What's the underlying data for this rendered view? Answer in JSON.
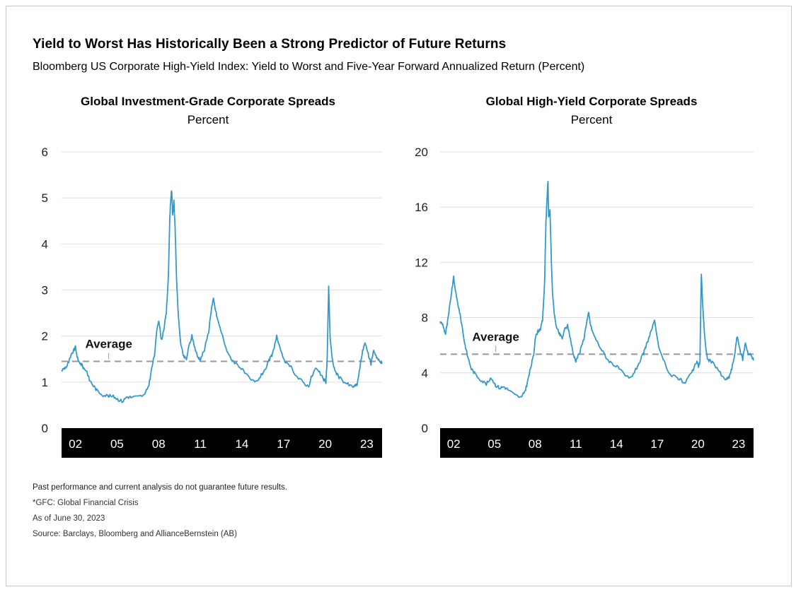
{
  "title": "Yield to Worst Has Historically Been a Strong Predictor of Future Returns",
  "subtitle": "Bloomberg US Corporate High-Yield Index: Yield to Worst and Five-Year Forward Annualized Return (Percent)",
  "colors": {
    "line": "#3399cc",
    "grid": "#dddddd",
    "average": "#999999",
    "axis_band": "#000000",
    "axis_text": "#ffffff"
  },
  "chart_data": [
    {
      "type": "line",
      "title": "Global Investment-Grade Corporate Spreads",
      "subtitle": "Percent",
      "ylim": [
        0,
        6
      ],
      "yticks": [
        0,
        1,
        2,
        3,
        4,
        5,
        6
      ],
      "xlim": [
        2001.0,
        2024.1
      ],
      "xticks": [
        {
          "value": 2002,
          "label": "02"
        },
        {
          "value": 2005,
          "label": "05"
        },
        {
          "value": 2008,
          "label": "08"
        },
        {
          "value": 2011,
          "label": "11"
        },
        {
          "value": 2014,
          "label": "14"
        },
        {
          "value": 2017,
          "label": "17"
        },
        {
          "value": 2020,
          "label": "20"
        },
        {
          "value": 2023,
          "label": "23"
        }
      ],
      "average": {
        "label": "Average",
        "value": 1.45
      },
      "grid": true,
      "series": [
        {
          "x": [
            2001.0,
            2001.2,
            2001.4,
            2001.6,
            2001.8,
            2002.0,
            2002.2,
            2002.4,
            2002.6,
            2002.8,
            2003.0,
            2003.3,
            2003.6,
            2004.0,
            2004.4,
            2004.8,
            2005.1,
            2005.4,
            2005.7,
            2006.0,
            2006.5,
            2007.0,
            2007.3,
            2007.5,
            2007.7,
            2007.9,
            2008.0,
            2008.2,
            2008.4,
            2008.55,
            2008.7,
            2008.8,
            2008.9,
            2008.95,
            2009.0,
            2009.1,
            2009.2,
            2009.3,
            2009.45,
            2009.6,
            2009.8,
            2010.0,
            2010.2,
            2010.4,
            2010.6,
            2010.8,
            2011.0,
            2011.3,
            2011.6,
            2011.8,
            2011.95,
            2012.1,
            2012.3,
            2012.6,
            2013.0,
            2013.4,
            2013.8,
            2014.2,
            2014.6,
            2015.0,
            2015.4,
            2015.8,
            2016.0,
            2016.2,
            2016.5,
            2016.8,
            2017.2,
            2017.6,
            2018.0,
            2018.4,
            2018.8,
            2019.0,
            2019.3,
            2019.6,
            2019.9,
            2020.05,
            2020.15,
            2020.25,
            2020.35,
            2020.5,
            2020.7,
            2021.0,
            2021.4,
            2021.8,
            2022.1,
            2022.3,
            2022.5,
            2022.7,
            2022.9,
            2023.1,
            2023.3,
            2023.5,
            2023.7,
            2023.9,
            2024.1
          ],
          "y": [
            1.25,
            1.3,
            1.35,
            1.5,
            1.65,
            1.75,
            1.45,
            1.4,
            1.3,
            1.25,
            1.05,
            0.92,
            0.8,
            0.72,
            0.7,
            0.68,
            0.62,
            0.58,
            0.68,
            0.67,
            0.68,
            0.72,
            0.95,
            1.3,
            1.6,
            2.2,
            2.35,
            1.9,
            2.2,
            2.5,
            3.3,
            4.6,
            5.1,
            5.13,
            4.6,
            4.95,
            4.2,
            3.1,
            2.3,
            1.8,
            1.55,
            1.5,
            1.8,
            2.0,
            1.75,
            1.55,
            1.5,
            1.7,
            2.1,
            2.6,
            2.8,
            2.55,
            2.3,
            2.0,
            1.6,
            1.45,
            1.35,
            1.2,
            1.05,
            1.0,
            1.15,
            1.35,
            1.5,
            1.6,
            2.0,
            1.65,
            1.4,
            1.3,
            1.1,
            1.0,
            0.9,
            1.1,
            1.3,
            1.2,
            1.05,
            1.0,
            1.55,
            3.1,
            2.0,
            1.5,
            1.25,
            1.1,
            1.0,
            0.92,
            0.9,
            0.95,
            1.3,
            1.7,
            1.85,
            1.6,
            1.4,
            1.7,
            1.55,
            1.45,
            1.4
          ]
        }
      ]
    },
    {
      "type": "line",
      "title": "Global High-Yield Corporate Spreads",
      "subtitle": "Percent",
      "ylim": [
        0,
        20
      ],
      "yticks": [
        0,
        4,
        8,
        12,
        16,
        20
      ],
      "xlim": [
        2001.0,
        2024.1
      ],
      "xticks": [
        {
          "value": 2002,
          "label": "02"
        },
        {
          "value": 2005,
          "label": "05"
        },
        {
          "value": 2008,
          "label": "08"
        },
        {
          "value": 2011,
          "label": "11"
        },
        {
          "value": 2014,
          "label": "14"
        },
        {
          "value": 2017,
          "label": "17"
        },
        {
          "value": 2020,
          "label": "20"
        },
        {
          "value": 2023,
          "label": "23"
        }
      ],
      "average": {
        "label": "Average",
        "value": 5.35
      },
      "grid": true,
      "series": [
        {
          "x": [
            2001.0,
            2001.2,
            2001.4,
            2001.6,
            2001.8,
            2002.0,
            2002.2,
            2002.4,
            2002.6,
            2002.8,
            2003.0,
            2003.3,
            2003.6,
            2004.0,
            2004.4,
            2004.8,
            2005.1,
            2005.4,
            2005.7,
            2006.0,
            2006.5,
            2007.0,
            2007.3,
            2007.5,
            2007.7,
            2007.9,
            2008.0,
            2008.2,
            2008.4,
            2008.55,
            2008.7,
            2008.8,
            2008.9,
            2008.95,
            2009.0,
            2009.1,
            2009.2,
            2009.3,
            2009.45,
            2009.6,
            2009.8,
            2010.0,
            2010.2,
            2010.4,
            2010.6,
            2010.8,
            2011.0,
            2011.3,
            2011.6,
            2011.8,
            2011.95,
            2012.1,
            2012.3,
            2012.6,
            2013.0,
            2013.4,
            2013.8,
            2014.2,
            2014.6,
            2015.0,
            2015.4,
            2015.8,
            2016.0,
            2016.2,
            2016.5,
            2016.8,
            2017.2,
            2017.6,
            2018.0,
            2018.4,
            2018.8,
            2019.0,
            2019.3,
            2019.6,
            2019.9,
            2020.05,
            2020.15,
            2020.25,
            2020.35,
            2020.5,
            2020.7,
            2021.0,
            2021.4,
            2021.8,
            2022.1,
            2022.3,
            2022.5,
            2022.7,
            2022.9,
            2023.1,
            2023.3,
            2023.5,
            2023.7,
            2023.9,
            2024.1
          ],
          "y": [
            7.7,
            7.5,
            6.8,
            8.0,
            9.5,
            10.9,
            9.5,
            8.6,
            7.5,
            6.2,
            5.3,
            4.3,
            3.9,
            3.5,
            3.2,
            3.6,
            3.1,
            2.9,
            3.0,
            2.8,
            2.4,
            2.2,
            2.8,
            3.6,
            4.5,
            5.3,
            6.5,
            7.0,
            7.2,
            7.8,
            10.5,
            15.0,
            17.0,
            17.9,
            15.2,
            15.8,
            12.0,
            9.5,
            8.0,
            7.2,
            6.8,
            6.5,
            7.2,
            7.4,
            6.5,
            5.4,
            4.9,
            5.5,
            6.5,
            7.7,
            8.3,
            7.4,
            6.8,
            6.2,
            5.5,
            4.9,
            4.6,
            4.3,
            3.8,
            3.6,
            4.2,
            5.0,
            5.4,
            6.0,
            6.9,
            7.7,
            5.5,
            4.6,
            3.8,
            3.7,
            3.5,
            3.2,
            3.7,
            4.1,
            4.8,
            4.5,
            4.8,
            11.2,
            9.0,
            6.5,
            5.0,
            4.8,
            4.4,
            3.7,
            3.5,
            3.7,
            4.3,
            5.3,
            6.7,
            5.6,
            5.0,
            6.2,
            5.4,
            5.3,
            4.9
          ]
        }
      ]
    }
  ],
  "footnotes": {
    "disclaimer": "Past performance and current analysis do not guarantee future results.",
    "gfc": "*GFC: Global Financial Crisis",
    "asof": "As of June 30, 2023",
    "source": "Source: Barclays, Bloomberg and AllianceBernstein (AB)"
  }
}
